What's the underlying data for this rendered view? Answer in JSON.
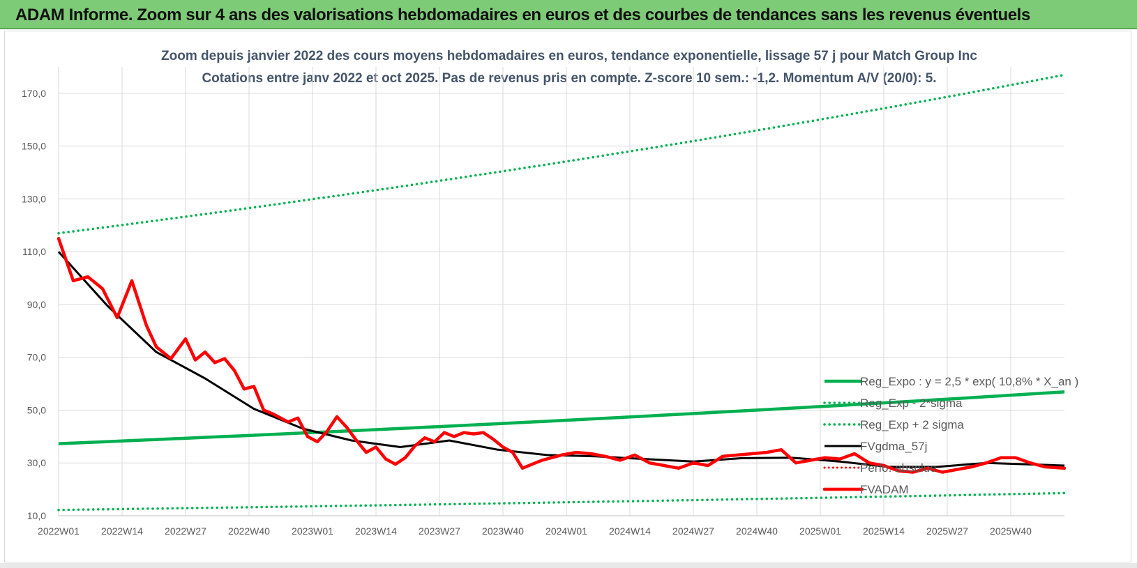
{
  "page": {
    "banner_title": "ADAM Informe. Zoom sur 4 ans des valorisations hebdomadaires en euros et des courbes de tendances sans les revenus éventuels"
  },
  "chart_data": {
    "type": "line",
    "title": "Zoom depuis janvier 2022 des cours moyens hebdomadaires en euros, tendance exponentielle, lissage 57 j pour Match Group Inc",
    "subtitle": "Cotations entre janv 2022 et oct 2025. Pas de revenus pris en compte. Z-score 10 sem.: -1,2. Momentum A/V (20/0): 5.",
    "xlabel": "",
    "ylabel": "",
    "ylim": [
      10,
      180
    ],
    "y_ticks": [
      "10,0",
      "30,0",
      "50,0",
      "70,0",
      "90,0",
      "110,0",
      "130,0",
      "150,0",
      "170,0"
    ],
    "y_tick_values": [
      10,
      30,
      50,
      70,
      90,
      110,
      130,
      150,
      170
    ],
    "x_ticks": [
      "2022W01",
      "2022W14",
      "2022W27",
      "2022W40",
      "2023W01",
      "2023W14",
      "2023W27",
      "2023W40",
      "2024W01",
      "2024W14",
      "2024W27",
      "2024W40",
      "2025W01",
      "2025W14",
      "2025W27",
      "2025W40"
    ],
    "x_tick_index": [
      0,
      13,
      26,
      39,
      52,
      65,
      78,
      91,
      104,
      117,
      130,
      143,
      156,
      169,
      182,
      195
    ],
    "x_range": [
      0,
      206
    ],
    "grid": true,
    "legend_position": "bottom-right",
    "colors": {
      "trend": "#00b050",
      "smooth": "#000000",
      "price": "#ff0000",
      "grid": "#d9d9d9",
      "title": "#44546a",
      "banner": "#7dcb76"
    },
    "series": [
      {
        "name": "Reg_Expo : y = 2,5 * exp( 10,8% * X_an )",
        "style": "solid-green-thick",
        "x": [
          0,
          206
        ],
        "exp_from_to": [
          37.3,
          56.9
        ]
      },
      {
        "name": "Reg_Exp - 2*sigma",
        "style": "dotted-green",
        "x": [
          0,
          206
        ],
        "exp_from_to": [
          12.2,
          18.6
        ]
      },
      {
        "name": "Reg_Exp + 2 sigma",
        "style": "dotted-green",
        "x": [
          0,
          206
        ],
        "exp_from_to": [
          117,
          177
        ]
      },
      {
        "name": "FVgdma_57j",
        "style": "solid-black",
        "x": [
          0,
          10,
          20,
          30,
          40,
          50,
          60,
          70,
          80,
          90,
          100,
          110,
          120,
          130,
          140,
          150,
          160,
          170,
          180,
          190,
          206
        ],
        "values": [
          110,
          89.5,
          72,
          62,
          50.5,
          43,
          38.5,
          36,
          38.5,
          35,
          33,
          32.5,
          31.5,
          30.5,
          31.8,
          32,
          30.5,
          28.5,
          28.5,
          30,
          29
        ]
      },
      {
        "name": "Perfo. absolue",
        "style": "dotted-red",
        "x": [],
        "values": []
      },
      {
        "name": "FVADAM",
        "style": "solid-red-thick",
        "x": [
          0,
          3,
          6,
          9,
          12,
          15,
          18,
          20,
          23,
          26,
          28,
          30,
          32,
          34,
          36,
          38,
          40,
          42,
          44,
          47,
          49,
          51,
          53,
          55,
          57,
          59,
          61,
          63,
          65,
          67,
          69,
          71,
          73,
          75,
          77,
          79,
          81,
          83,
          85,
          87,
          89,
          91,
          93,
          95,
          97,
          99,
          101,
          103,
          106,
          109,
          112,
          115,
          118,
          121,
          124,
          127,
          130,
          133,
          136,
          139,
          142,
          145,
          148,
          151,
          154,
          157,
          160,
          163,
          166,
          169,
          172,
          175,
          178,
          181,
          184,
          187,
          190,
          193,
          196,
          199,
          202,
          206
        ],
        "values": [
          115,
          99,
          100.5,
          96,
          85,
          99,
          82,
          74,
          69.5,
          77,
          69,
          72,
          68,
          69.5,
          65,
          58,
          59,
          50,
          48.5,
          45.5,
          47,
          40,
          38,
          42,
          47.5,
          43.5,
          38.5,
          34,
          36,
          31.5,
          29.5,
          32,
          36.5,
          39.5,
          38,
          41.5,
          40,
          41.5,
          41,
          41.5,
          39,
          36,
          34,
          28,
          29.5,
          31,
          32,
          33,
          34,
          33.5,
          32.5,
          31,
          33,
          30,
          29,
          28,
          30,
          29,
          32.5,
          33,
          33.5,
          34,
          35,
          30,
          31,
          32,
          31.5,
          33.5,
          30,
          29,
          27,
          26.5,
          28,
          26.5,
          27.5,
          28.5,
          30,
          32,
          32,
          30,
          28.5,
          28
        ]
      }
    ]
  }
}
